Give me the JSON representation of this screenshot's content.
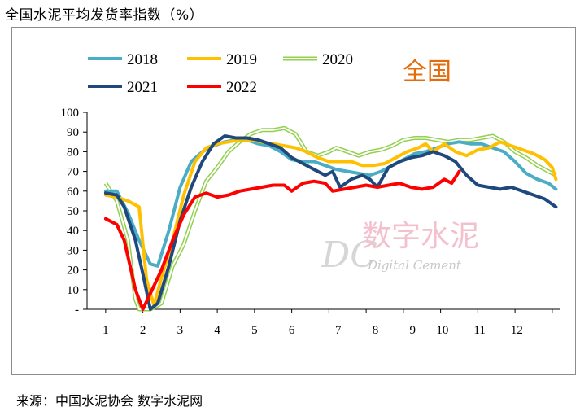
{
  "title": "全国水泥平均发货率指数（%）",
  "source": "来源：中国水泥协会  数字水泥网",
  "chart_data": {
    "type": "line",
    "region_label": "全国",
    "watermark": {
      "cn": "数字水泥",
      "en": "Digital Cement",
      "logo": "DC"
    },
    "xlim": [
      0.5,
      13.2
    ],
    "ylim": [
      0,
      100
    ],
    "y_ticks": [
      {
        "value": 0,
        "label": "-"
      },
      {
        "value": 10,
        "label": "10"
      },
      {
        "value": 20,
        "label": "20"
      },
      {
        "value": 30,
        "label": "30"
      },
      {
        "value": 40,
        "label": "40"
      },
      {
        "value": 50,
        "label": "50"
      },
      {
        "value": 60,
        "label": "60"
      },
      {
        "value": 70,
        "label": "70"
      },
      {
        "value": 80,
        "label": "80"
      },
      {
        "value": 90,
        "label": "90"
      },
      {
        "value": 100,
        "label": "100"
      }
    ],
    "x_ticks": [
      {
        "value": 1,
        "label": "1"
      },
      {
        "value": 2,
        "label": "2"
      },
      {
        "value": 3,
        "label": "3"
      },
      {
        "value": 4,
        "label": "4"
      },
      {
        "value": 5,
        "label": "5"
      },
      {
        "value": 6,
        "label": "6"
      },
      {
        "value": 7.25,
        "label": "7"
      },
      {
        "value": 8.25,
        "label": "8"
      },
      {
        "value": 9.25,
        "label": "9"
      },
      {
        "value": 10.05,
        "label": "10"
      },
      {
        "value": 11.05,
        "label": "11"
      },
      {
        "value": 12.05,
        "label": "12"
      }
    ],
    "series": [
      {
        "name": "2018",
        "color": "#4bacc6",
        "width": 4,
        "double": false,
        "points": [
          [
            1,
            60
          ],
          [
            1.3,
            60
          ],
          [
            1.6,
            49
          ],
          [
            1.9,
            35
          ],
          [
            2.2,
            23
          ],
          [
            2.4,
            22
          ],
          [
            2.7,
            40
          ],
          [
            3,
            62
          ],
          [
            3.3,
            75
          ],
          [
            3.6,
            80
          ],
          [
            3.9,
            83
          ],
          [
            4.2,
            85
          ],
          [
            4.5,
            86
          ],
          [
            4.8,
            86
          ],
          [
            5.1,
            84
          ],
          [
            5.4,
            83
          ],
          [
            5.7,
            80
          ],
          [
            6,
            76
          ],
          [
            6.3,
            75
          ],
          [
            6.6,
            75
          ],
          [
            6.9,
            73
          ],
          [
            7.2,
            71
          ],
          [
            7.5,
            70
          ],
          [
            7.8,
            69
          ],
          [
            8.1,
            68
          ],
          [
            8.4,
            70
          ],
          [
            8.7,
            73
          ],
          [
            9,
            76
          ],
          [
            9.3,
            79
          ],
          [
            9.6,
            80
          ],
          [
            9.9,
            82
          ],
          [
            10.2,
            84
          ],
          [
            10.5,
            85
          ],
          [
            10.8,
            84
          ],
          [
            11.1,
            84
          ],
          [
            11.4,
            82
          ],
          [
            11.7,
            80
          ],
          [
            12,
            75
          ],
          [
            12.3,
            69
          ],
          [
            12.6,
            66
          ],
          [
            12.9,
            64
          ],
          [
            13.1,
            61
          ]
        ]
      },
      {
        "name": "2019",
        "color": "#ffc000",
        "width": 4,
        "double": false,
        "points": [
          [
            1,
            58
          ],
          [
            1.3,
            57
          ],
          [
            1.6,
            55
          ],
          [
            1.9,
            52
          ],
          [
            2.1,
            15
          ],
          [
            2.3,
            2
          ],
          [
            2.5,
            16
          ],
          [
            2.8,
            35
          ],
          [
            3.1,
            58
          ],
          [
            3.4,
            75
          ],
          [
            3.7,
            82
          ],
          [
            4,
            84
          ],
          [
            4.3,
            85
          ],
          [
            4.6,
            86
          ],
          [
            4.9,
            86
          ],
          [
            5.2,
            85
          ],
          [
            5.5,
            84
          ],
          [
            5.8,
            83
          ],
          [
            6.1,
            82
          ],
          [
            6.4,
            80
          ],
          [
            6.7,
            77
          ],
          [
            7,
            75
          ],
          [
            7.3,
            75
          ],
          [
            7.6,
            75
          ],
          [
            7.9,
            73
          ],
          [
            8.2,
            73
          ],
          [
            8.5,
            74
          ],
          [
            8.8,
            77
          ],
          [
            9.1,
            80
          ],
          [
            9.4,
            82
          ],
          [
            9.6,
            84
          ],
          [
            9.8,
            80
          ],
          [
            10.1,
            84
          ],
          [
            10.4,
            80
          ],
          [
            10.7,
            78
          ],
          [
            11,
            81
          ],
          [
            11.3,
            82
          ],
          [
            11.6,
            85
          ],
          [
            11.9,
            83
          ],
          [
            12.2,
            81
          ],
          [
            12.5,
            79
          ],
          [
            12.8,
            76
          ],
          [
            13,
            72
          ],
          [
            13.1,
            66
          ]
        ]
      },
      {
        "name": "2020",
        "color": "#92d050",
        "width": 2,
        "double": true,
        "points": [
          [
            1,
            64
          ],
          [
            1.3,
            55
          ],
          [
            1.6,
            35
          ],
          [
            1.8,
            5
          ],
          [
            1.9,
            0
          ],
          [
            2.2,
            0
          ],
          [
            2.5,
            3
          ],
          [
            2.8,
            22
          ],
          [
            3.1,
            33
          ],
          [
            3.4,
            50
          ],
          [
            3.7,
            65
          ],
          [
            4,
            72
          ],
          [
            4.3,
            80
          ],
          [
            4.6,
            85
          ],
          [
            4.9,
            89
          ],
          [
            5.2,
            91
          ],
          [
            5.5,
            91
          ],
          [
            5.8,
            92
          ],
          [
            6.1,
            89
          ],
          [
            6.4,
            80
          ],
          [
            6.7,
            78
          ],
          [
            7,
            80
          ],
          [
            7.2,
            82
          ],
          [
            7.5,
            80
          ],
          [
            7.8,
            78
          ],
          [
            8.1,
            80
          ],
          [
            8.4,
            81
          ],
          [
            8.7,
            83
          ],
          [
            9,
            86
          ],
          [
            9.3,
            87
          ],
          [
            9.6,
            87
          ],
          [
            9.9,
            86
          ],
          [
            10.2,
            85
          ],
          [
            10.5,
            86
          ],
          [
            10.8,
            86
          ],
          [
            11.1,
            87
          ],
          [
            11.4,
            88
          ],
          [
            11.7,
            85
          ],
          [
            12,
            80
          ],
          [
            12.3,
            77
          ],
          [
            12.6,
            73
          ],
          [
            12.9,
            70
          ],
          [
            13.1,
            68
          ]
        ]
      },
      {
        "name": "2021",
        "color": "#1f497d",
        "width": 4,
        "double": false,
        "points": [
          [
            1,
            59
          ],
          [
            1.3,
            58
          ],
          [
            1.5,
            52
          ],
          [
            1.8,
            35
          ],
          [
            2,
            18
          ],
          [
            2.2,
            0
          ],
          [
            2.4,
            3
          ],
          [
            2.7,
            22
          ],
          [
            3,
            45
          ],
          [
            3.3,
            62
          ],
          [
            3.6,
            75
          ],
          [
            3.9,
            84
          ],
          [
            4.2,
            88
          ],
          [
            4.5,
            87
          ],
          [
            4.8,
            87
          ],
          [
            5.1,
            86
          ],
          [
            5.4,
            84
          ],
          [
            5.7,
            82
          ],
          [
            6,
            77
          ],
          [
            6.3,
            74
          ],
          [
            6.6,
            71
          ],
          [
            6.9,
            68
          ],
          [
            7.1,
            70
          ],
          [
            7.3,
            62
          ],
          [
            7.6,
            66
          ],
          [
            7.9,
            68
          ],
          [
            8.1,
            66
          ],
          [
            8.3,
            62
          ],
          [
            8.6,
            72
          ],
          [
            8.9,
            75
          ],
          [
            9.2,
            77
          ],
          [
            9.5,
            78
          ],
          [
            9.8,
            80
          ],
          [
            10.1,
            78
          ],
          [
            10.4,
            75
          ],
          [
            10.7,
            68
          ],
          [
            11,
            63
          ],
          [
            11.3,
            62
          ],
          [
            11.6,
            61
          ],
          [
            11.9,
            62
          ],
          [
            12.2,
            60
          ],
          [
            12.5,
            58
          ],
          [
            12.8,
            56
          ],
          [
            13.1,
            52
          ]
        ]
      },
      {
        "name": "2022",
        "color": "#ff0000",
        "width": 4,
        "double": false,
        "points": [
          [
            1,
            46
          ],
          [
            1.3,
            43
          ],
          [
            1.5,
            35
          ],
          [
            1.8,
            10
          ],
          [
            2,
            0
          ],
          [
            2.2,
            8
          ],
          [
            2.5,
            20
          ],
          [
            2.8,
            35
          ],
          [
            3.1,
            48
          ],
          [
            3.4,
            57
          ],
          [
            3.7,
            59
          ],
          [
            4,
            57
          ],
          [
            4.3,
            58
          ],
          [
            4.6,
            60
          ],
          [
            4.9,
            61
          ],
          [
            5.2,
            62
          ],
          [
            5.5,
            63
          ],
          [
            5.8,
            63
          ],
          [
            6,
            60
          ],
          [
            6.3,
            64
          ],
          [
            6.6,
            65
          ],
          [
            6.9,
            64
          ],
          [
            7.1,
            60
          ],
          [
            7.4,
            61
          ],
          [
            7.7,
            62
          ],
          [
            8,
            63
          ],
          [
            8.3,
            62
          ],
          [
            8.6,
            63
          ],
          [
            8.9,
            64
          ],
          [
            9.2,
            62
          ],
          [
            9.5,
            61
          ],
          [
            9.8,
            62
          ],
          [
            10.1,
            66
          ],
          [
            10.3,
            64
          ],
          [
            10.5,
            70
          ]
        ]
      }
    ]
  }
}
